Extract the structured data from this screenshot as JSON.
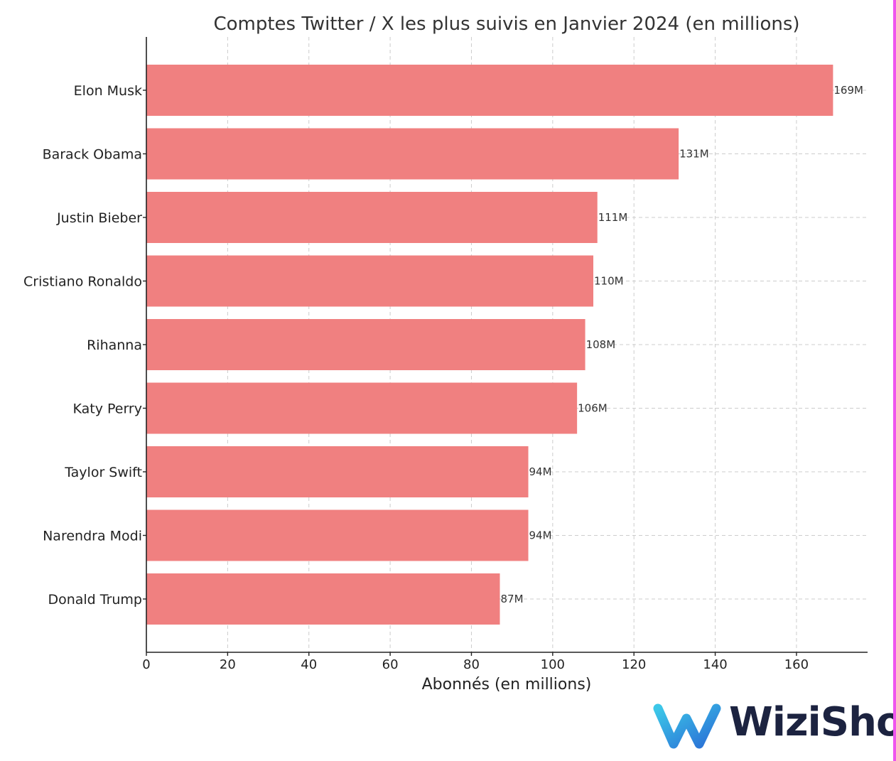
{
  "chart_data": {
    "type": "bar",
    "orientation": "horizontal",
    "title": "Comptes Twitter / X les plus suivis en Janvier 2024 (en millions)",
    "xlabel": "Abonnés (en millions)",
    "ylabel": "",
    "categories": [
      "Elon Musk",
      "Barack Obama",
      "Justin Bieber",
      "Cristiano Ronaldo",
      "Rihanna",
      "Katy Perry",
      "Taylor Swift",
      "Narendra Modi",
      "Donald Trump"
    ],
    "values": [
      169,
      131,
      111,
      110,
      108,
      106,
      94,
      94,
      87
    ],
    "value_labels": [
      "169M",
      "131M",
      "111M",
      "110M",
      "108M",
      "106M",
      "94M",
      "94M",
      "87M"
    ],
    "xlim": [
      0,
      177.5
    ],
    "xticks": [
      0,
      20,
      40,
      60,
      80,
      100,
      120,
      140,
      160
    ],
    "grid": true,
    "bar_color": "#f08080"
  },
  "logo": {
    "text": "WiziShop",
    "icon": "wizishop-w-logo-icon",
    "text_color": "#1c2340",
    "icon_color_start": "#3cc7e8",
    "icon_color_end": "#2a6fd6"
  },
  "frame": {
    "edge_color": "#ee55ee"
  }
}
